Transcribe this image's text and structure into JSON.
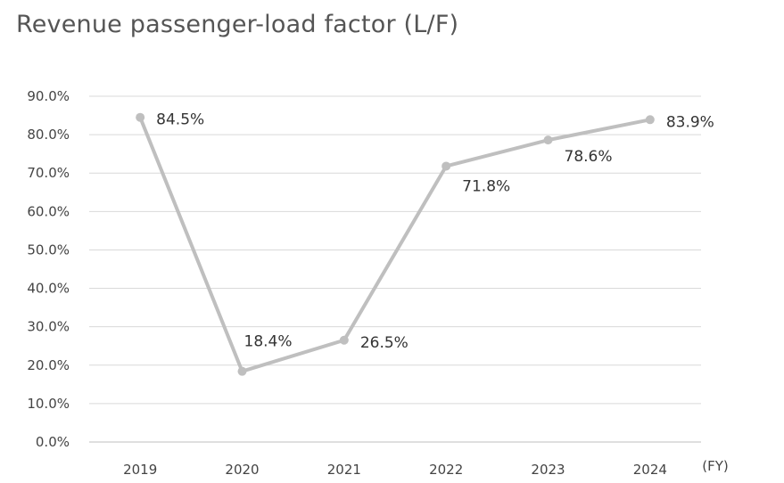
{
  "chart_data": {
    "type": "line",
    "title": "Revenue passenger-load factor (L/F)",
    "xlabel": "(FY)",
    "ylabel": "",
    "categories": [
      "2019",
      "2020",
      "2021",
      "2022",
      "2023",
      "2024"
    ],
    "series": [
      {
        "name": "L/F",
        "values": [
          84.5,
          18.4,
          26.5,
          71.8,
          78.6,
          83.9
        ],
        "color": "#bfbfbf"
      }
    ],
    "data_labels": [
      "84.5%",
      "18.4%",
      "26.5%",
      "71.8%",
      "78.6%",
      "83.9%"
    ],
    "ylim": [
      0,
      90
    ],
    "yticks": [
      "0.0%",
      "10.0%",
      "20.0%",
      "30.0%",
      "40.0%",
      "50.0%",
      "60.0%",
      "70.0%",
      "80.0%",
      "90.0%"
    ],
    "grid": true,
    "gridColor": "#d9d9d9",
    "textColor": "#444444"
  }
}
